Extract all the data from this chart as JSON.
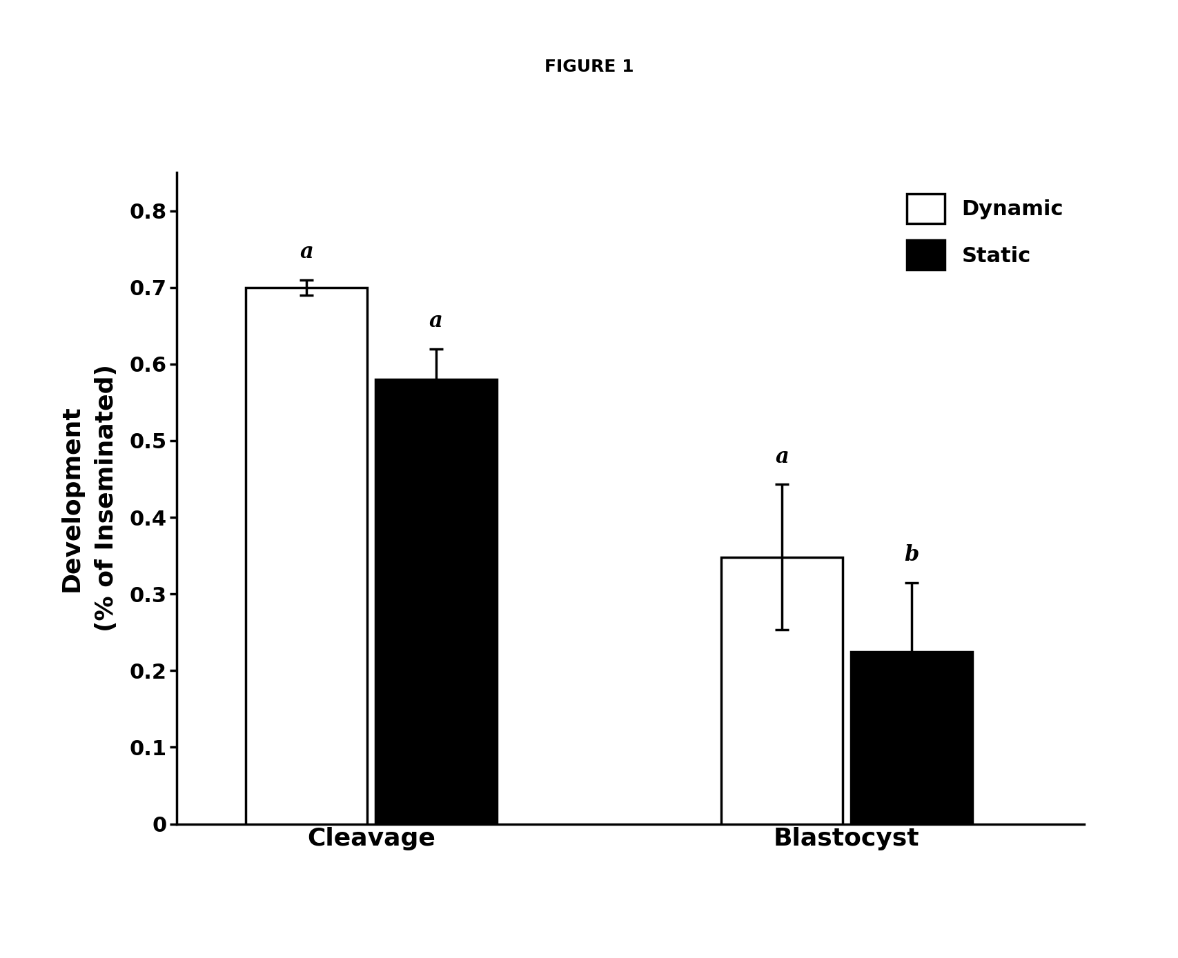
{
  "title": "FIGURE 1",
  "categories": [
    "Cleavage",
    "Blastocyst"
  ],
  "groups": [
    "Dynamic",
    "Static"
  ],
  "values": {
    "Cleavage": {
      "Dynamic": 0.7,
      "Static": 0.58
    },
    "Blastocyst": {
      "Dynamic": 0.348,
      "Static": 0.225
    }
  },
  "errors": {
    "Cleavage": {
      "Dynamic": 0.01,
      "Static": 0.04
    },
    "Blastocyst": {
      "Dynamic": 0.095,
      "Static": 0.09
    }
  },
  "labels": {
    "Cleavage": {
      "Dynamic": "a",
      "Static": "a"
    },
    "Blastocyst": {
      "Dynamic": "a",
      "Static": "b"
    }
  },
  "bar_colors": {
    "Dynamic": "#ffffff",
    "Static": "#000000"
  },
  "bar_edgecolor": "#000000",
  "bar_width": 0.28,
  "ylim": [
    0,
    0.85
  ],
  "yticks": [
    0,
    0.1,
    0.2,
    0.3,
    0.4,
    0.5,
    0.6,
    0.7,
    0.8
  ],
  "title_fontsize": 18,
  "axis_label_fontsize": 26,
  "tick_fontsize": 22,
  "legend_fontsize": 22,
  "annotation_fontsize": 22,
  "xlabel_fontsize": 26,
  "bar_linewidth": 2.5,
  "axis_linewidth": 2.5,
  "background_color": "#ffffff",
  "group_centers": [
    1.0,
    2.1
  ]
}
